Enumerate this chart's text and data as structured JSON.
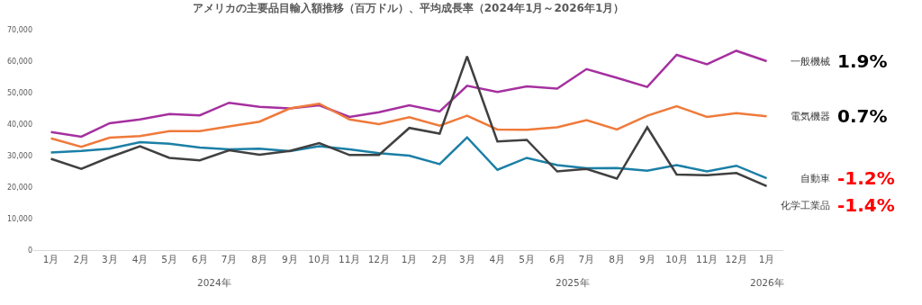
{
  "chart_data": {
    "type": "line",
    "title": "アメリカの主要品目輸入額推移（百万ドル）、平均成長率（2024年1月～2026年1月）",
    "x": [
      "2024-01",
      "2024-02",
      "2024-03",
      "2024-04",
      "2024-05",
      "2024-06",
      "2024-07",
      "2024-08",
      "2024-09",
      "2024-10",
      "2024-11",
      "2024-12",
      "2025-01",
      "2025-02",
      "2025-03",
      "2025-04",
      "2025-05",
      "2025-06",
      "2025-07",
      "2025-08",
      "2025-09",
      "2025-10",
      "2025-11",
      "2025-12",
      "2026-01"
    ],
    "xlim": [
      "2023-12-14",
      "2026-01-18"
    ],
    "xticks": [
      {
        "value": "2024-01",
        "label": "1月"
      },
      {
        "value": "2024-02",
        "label": "2月"
      },
      {
        "value": "2024-03",
        "label": "3月"
      },
      {
        "value": "2024-04",
        "label": "4月"
      },
      {
        "value": "2024-05",
        "label": "5月"
      },
      {
        "value": "2024-06",
        "label": "6月"
      },
      {
        "value": "2024-07",
        "label": "7月"
      },
      {
        "value": "2024-08",
        "label": "8月"
      },
      {
        "value": "2024-09",
        "label": "9月"
      },
      {
        "value": "2024-10",
        "label": "10月"
      },
      {
        "value": "2024-11",
        "label": "11月"
      },
      {
        "value": "2024-12",
        "label": "12月"
      },
      {
        "value": "2025-01",
        "label": "1月"
      },
      {
        "value": "2025-02",
        "label": "2月"
      },
      {
        "value": "2025-03",
        "label": "3月"
      },
      {
        "value": "2025-04",
        "label": "4月"
      },
      {
        "value": "2025-05",
        "label": "5月"
      },
      {
        "value": "2025-06",
        "label": "6月"
      },
      {
        "value": "2025-07",
        "label": "7月"
      },
      {
        "value": "2025-08",
        "label": "8月"
      },
      {
        "value": "2025-09",
        "label": "9月"
      },
      {
        "value": "2025-10",
        "label": "10月"
      },
      {
        "value": "2025-11",
        "label": "11月"
      },
      {
        "value": "2025-12",
        "label": "12月"
      },
      {
        "value": "2026-01",
        "label": "1月"
      }
    ],
    "ylim": [
      0,
      70000
    ],
    "yticks": [
      {
        "value": 0,
        "label": "0"
      },
      {
        "value": 10000,
        "label": "10,000"
      },
      {
        "value": 20000,
        "label": "20,000"
      },
      {
        "value": 30000,
        "label": "30,000"
      },
      {
        "value": 40000,
        "label": "40,000"
      },
      {
        "value": 50000,
        "label": "50,000"
      },
      {
        "value": 60000,
        "label": "60,000"
      },
      {
        "value": 70000,
        "label": "70,000"
      }
    ],
    "series": [
      {
        "name": "一般機械",
        "color": "#a5309f",
        "values": [
          37500,
          36000,
          40300,
          41500,
          43200,
          42800,
          46800,
          45500,
          45000,
          46000,
          42300,
          43800,
          46000,
          44000,
          52200,
          50200,
          52000,
          51300,
          57500,
          54700,
          51800,
          62000,
          59000,
          63300,
          60000
        ]
      },
      {
        "name": "電気機器",
        "color": "#ef7a3a",
        "values": [
          35500,
          32800,
          35700,
          36200,
          37800,
          37800,
          39300,
          40800,
          45000,
          46500,
          41500,
          40000,
          42200,
          39500,
          42700,
          38300,
          38200,
          39000,
          41300,
          38300,
          42700,
          45700,
          42300,
          43500,
          42500
        ]
      },
      {
        "name": "自動車",
        "color": "#1b7fa6",
        "values": [
          31000,
          31500,
          32200,
          34300,
          33800,
          32600,
          32000,
          32200,
          31400,
          33000,
          32000,
          30800,
          30000,
          27300,
          35800,
          25500,
          29300,
          27000,
          26000,
          26100,
          25200,
          27000,
          25000,
          26800,
          22800
        ]
      },
      {
        "name": "化学工業品",
        "color": "#404040",
        "values": [
          29000,
          25800,
          29500,
          33000,
          29300,
          28500,
          31700,
          30300,
          31500,
          34000,
          30200,
          30200,
          38800,
          37000,
          61500,
          34500,
          35000,
          25000,
          25800,
          22700,
          39000,
          24000,
          23800,
          24500,
          20300
        ]
      }
    ],
    "annotations": [
      "2024年",
      "2025年",
      "2026年",
      "1.9%",
      "0.7%",
      "-1.2%",
      "-1.4%"
    ]
  }
}
